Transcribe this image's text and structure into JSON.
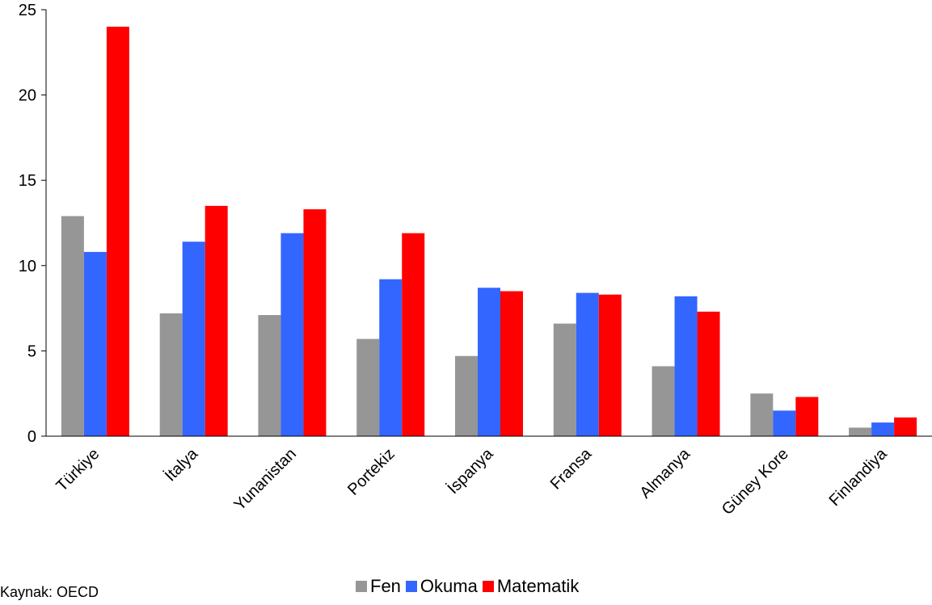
{
  "chart_data": {
    "type": "bar",
    "title": "",
    "xlabel": "",
    "ylabel": "",
    "ylim": [
      0,
      25
    ],
    "yticks": [
      0,
      5,
      10,
      15,
      20,
      25
    ],
    "grid": false,
    "legend_position": "bottom",
    "categories": [
      "Türkiye",
      "İtalya",
      "Yunanistan",
      "Portekiz",
      "İspanya",
      "Fransa",
      "Almanya",
      "Güney Kore",
      "Finlandiya"
    ],
    "series": [
      {
        "name": "Fen",
        "color": "#969696",
        "values": [
          12.9,
          7.2,
          7.1,
          5.7,
          4.7,
          6.6,
          4.1,
          2.5,
          0.5
        ]
      },
      {
        "name": "Okuma",
        "color": "#3366ff",
        "values": [
          10.8,
          11.4,
          11.9,
          9.2,
          8.7,
          8.4,
          8.2,
          1.5,
          0.8
        ]
      },
      {
        "name": "Matematik",
        "color": "#ff0000",
        "values": [
          24.0,
          13.5,
          13.3,
          11.9,
          8.5,
          8.3,
          7.3,
          2.3,
          1.1
        ]
      }
    ]
  },
  "source_text": "Kaynak: OECD"
}
